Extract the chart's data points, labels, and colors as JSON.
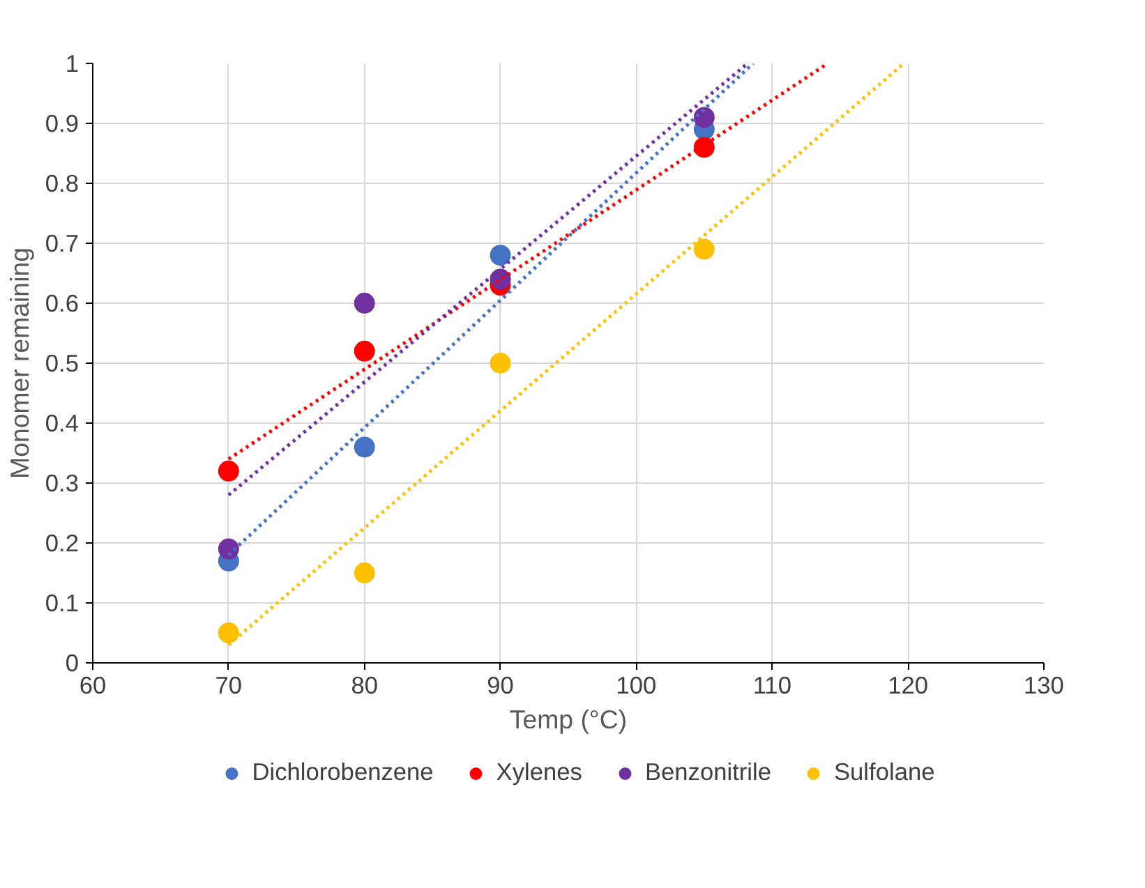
{
  "chart_data": {
    "type": "scatter",
    "xlabel": "Temp (°C)",
    "ylabel": "Monomer remaining",
    "xlim": [
      60,
      130
    ],
    "xticks": [
      60,
      70,
      80,
      90,
      100,
      110,
      120,
      130
    ],
    "ylim": [
      0,
      1
    ],
    "yticks": [
      0,
      0.1,
      0.2,
      0.3,
      0.4,
      0.5,
      0.6,
      0.7,
      0.8,
      0.9,
      1
    ],
    "grid": true,
    "legend": "bottom",
    "marker": "circle",
    "series": [
      {
        "name": "Dichlorobenzene",
        "color": "#4472c4",
        "x": [
          70,
          80,
          90,
          105
        ],
        "values": [
          0.17,
          0.36,
          0.68,
          0.89
        ]
      },
      {
        "name": "Xylenes",
        "color": "#ff0000",
        "x": [
          70,
          80,
          90,
          105
        ],
        "values": [
          0.32,
          0.52,
          0.63,
          0.86
        ]
      },
      {
        "name": "Benzonitrile",
        "color": "#7030a0",
        "x": [
          70,
          80,
          90,
          105
        ],
        "values": [
          0.19,
          0.6,
          0.64,
          0.91
        ]
      },
      {
        "name": "Sulfolane",
        "color": "#ffc000",
        "x": [
          70,
          80,
          90,
          105
        ],
        "values": [
          0.05,
          0.15,
          0.5,
          0.69
        ]
      },
      {
        "type": "line",
        "line_style": "dotted",
        "marker": "none",
        "color": "#4472c4",
        "x": [
          70,
          108.6
        ],
        "values": [
          0.18,
          1.0
        ]
      },
      {
        "type": "line",
        "line_style": "dotted",
        "marker": "none",
        "color": "#ff0000",
        "x": [
          70,
          114.1
        ],
        "values": [
          0.34,
          1.0
        ]
      },
      {
        "type": "line",
        "line_style": "dotted",
        "marker": "none",
        "color": "#7030a0",
        "x": [
          70,
          108.2
        ],
        "values": [
          0.28,
          1.0
        ]
      },
      {
        "type": "line",
        "line_style": "dotted",
        "marker": "none",
        "color": "#ffc000",
        "x": [
          70,
          119.7
        ],
        "values": [
          0.03,
          1.0
        ]
      }
    ]
  }
}
